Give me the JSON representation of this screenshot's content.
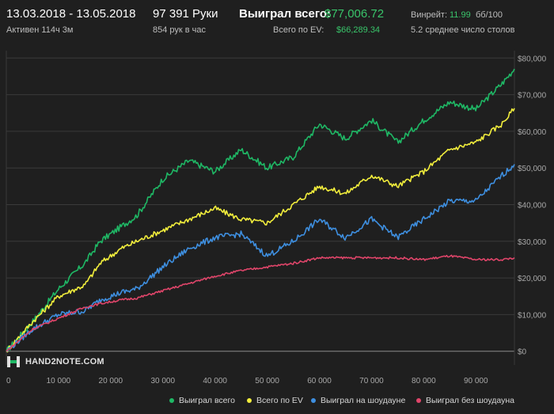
{
  "header": {
    "date_range": "13.03.2018 - 13.05.2018",
    "active": "Активен 114ч 3м",
    "hands": "97 391 Руки",
    "hands_per_hour": "854 рук в час",
    "won_label": "Выиграл всего:",
    "won_value": "$77,006.72",
    "ev_label": "Всего по EV:",
    "ev_value": "$66,289.34",
    "winrate_label": "Винрейт:",
    "winrate_value": "11.99",
    "winrate_unit": "бб/100",
    "tables": "5.2 среднее число столов"
  },
  "logo": {
    "text": "HAND2NOTE.COM"
  },
  "colors": {
    "won": "#1fb865",
    "ev": "#f2ee3c",
    "showdown": "#3e8fe0",
    "nonshowdown": "#e0456a"
  },
  "chart_data": {
    "type": "line",
    "xlabel": "",
    "ylabel": "",
    "xlim": [
      0,
      97391
    ],
    "ylim": [
      -2000,
      82000
    ],
    "x_ticks": [
      "0",
      "10 000",
      "20 000",
      "30 000",
      "40 000",
      "50 000",
      "60 000",
      "70 000",
      "80 000",
      "90 000"
    ],
    "y_ticks": [
      "$80,000",
      "$70,000",
      "$60,000",
      "$50,000",
      "$40,000",
      "$30,000",
      "$20,000",
      "$10,000",
      "$0"
    ],
    "legend": [
      "Выиграл всего",
      "Всего по EV",
      "Выиграл на шоудауне",
      "Выиграл без шоудауна"
    ],
    "legend_position": "bottom",
    "x": [
      0,
      5000,
      10000,
      15000,
      18000,
      22000,
      25000,
      30000,
      35000,
      40000,
      45000,
      50000,
      55000,
      60000,
      65000,
      70000,
      75000,
      80000,
      85000,
      90000,
      95000,
      97391
    ],
    "series": [
      {
        "name": "Выиграл всего",
        "values": [
          0,
          8000,
          17000,
          24000,
          30000,
          34000,
          37000,
          47000,
          52000,
          49000,
          55000,
          50000,
          53000,
          62000,
          58000,
          63000,
          57000,
          63000,
          68000,
          66000,
          73000,
          77007
        ]
      },
      {
        "name": "Всего по EV",
        "values": [
          0,
          8000,
          15000,
          18000,
          24000,
          28000,
          30000,
          33000,
          36000,
          39000,
          36000,
          35000,
          40000,
          45000,
          43000,
          48000,
          45000,
          49000,
          55000,
          57000,
          62000,
          66289
        ]
      },
      {
        "name": "Выиграл на шоудауне",
        "values": [
          0,
          6000,
          10000,
          11000,
          14000,
          16000,
          17000,
          23000,
          28000,
          31000,
          32000,
          26000,
          30000,
          36000,
          31000,
          36000,
          31000,
          36000,
          41000,
          41000,
          48000,
          51000
        ]
      },
      {
        "name": "Выиграл без шоудауна",
        "values": [
          0,
          6000,
          9000,
          12000,
          13000,
          14000,
          14500,
          16500,
          18500,
          20500,
          22000,
          23000,
          24000,
          25500,
          25500,
          25500,
          25500,
          25000,
          26000,
          25000,
          25000,
          25500
        ]
      }
    ]
  }
}
